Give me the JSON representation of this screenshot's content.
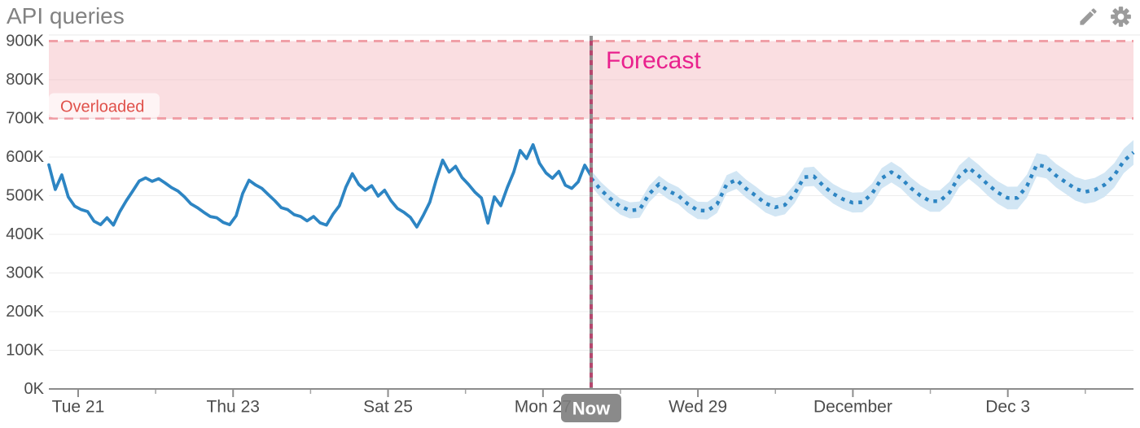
{
  "widget": {
    "title": "API queries",
    "icons": {
      "edit": "pencil-icon",
      "settings": "gear-icon"
    }
  },
  "colors": {
    "title_text": "#828282",
    "icon_gray": "#9b9b9b",
    "line_blue": "#2d85c3",
    "band_blue": "#d2e6f4",
    "zone_fill": "rgba(243,168,176,0.38)",
    "zone_dash": "#f09fa7",
    "overloaded_text": "#e0514b",
    "overloaded_label_bg": "rgba(255,250,250,0.78)",
    "forecast_label": "#e9218d",
    "now_line_pink": "#b5486f",
    "now_line_gray": "#909090",
    "now_badge_bg": "rgba(125,125,125,0.9)",
    "now_badge_text": "#ffffff",
    "axis_line": "#8c8c8c",
    "grid_line": "#ececec",
    "tick_label": "#4d4d4d"
  },
  "chart_data": {
    "type": "line",
    "title": "API queries",
    "values_unit": "thousands of queries (K)",
    "grid": true,
    "y_axis": {
      "min": 0,
      "max": 900,
      "tick_step": 100,
      "tick_values": [
        0,
        100,
        200,
        300,
        400,
        500,
        600,
        700,
        800,
        900
      ],
      "tick_labels": [
        "0K",
        "100K",
        "200K",
        "300K",
        "400K",
        "500K",
        "600K",
        "700K",
        "800K",
        "900K"
      ]
    },
    "x_axis": {
      "domain_days": [
        0,
        14
      ],
      "major_ticks": [
        {
          "label": "Tue 21",
          "day": 0.378
        },
        {
          "label": "Thu 23",
          "day": 2.378
        },
        {
          "label": "Sat 25",
          "day": 4.378
        },
        {
          "label": "Mon 27",
          "day": 6.378
        },
        {
          "label": "Wed 29",
          "day": 8.378
        },
        {
          "label": "December",
          "day": 10.378
        },
        {
          "label": "Dec 3",
          "day": 12.378
        }
      ],
      "minor_tick_days": [
        1.378,
        3.378,
        5.378,
        7.378,
        9.378,
        11.378,
        13.378
      ]
    },
    "annotations": {
      "overloaded_zone": {
        "label": "Overloaded",
        "from_k": 700,
        "to_k": 900
      },
      "now_marker": {
        "label": "Now",
        "day": 7.0
      },
      "forecast_label": {
        "text": "Forecast"
      }
    },
    "series": [
      {
        "name": "API queries (actual)",
        "style": "solid",
        "points_day_valueK": [
          [
            0,
            580
          ],
          [
            0.083,
            516
          ],
          [
            0.167,
            554
          ],
          [
            0.25,
            497
          ],
          [
            0.333,
            473
          ],
          [
            0.417,
            464
          ],
          [
            0.5,
            459
          ],
          [
            0.583,
            434
          ],
          [
            0.667,
            425
          ],
          [
            0.75,
            443
          ],
          [
            0.833,
            424
          ],
          [
            0.917,
            459
          ],
          [
            1,
            487
          ],
          [
            1.083,
            512
          ],
          [
            1.167,
            538
          ],
          [
            1.25,
            546
          ],
          [
            1.333,
            537
          ],
          [
            1.417,
            544
          ],
          [
            1.5,
            533
          ],
          [
            1.583,
            521
          ],
          [
            1.667,
            512
          ],
          [
            1.75,
            497
          ],
          [
            1.833,
            479
          ],
          [
            1.917,
            469
          ],
          [
            2,
            457
          ],
          [
            2.083,
            446
          ],
          [
            2.167,
            443
          ],
          [
            2.25,
            431
          ],
          [
            2.333,
            425
          ],
          [
            2.417,
            448
          ],
          [
            2.5,
            505
          ],
          [
            2.583,
            540
          ],
          [
            2.667,
            528
          ],
          [
            2.75,
            519
          ],
          [
            2.833,
            503
          ],
          [
            2.917,
            487
          ],
          [
            3,
            469
          ],
          [
            3.083,
            464
          ],
          [
            3.167,
            451
          ],
          [
            3.25,
            446
          ],
          [
            3.333,
            435
          ],
          [
            3.417,
            446
          ],
          [
            3.5,
            430
          ],
          [
            3.583,
            424
          ],
          [
            3.667,
            452
          ],
          [
            3.75,
            474
          ],
          [
            3.833,
            522
          ],
          [
            3.917,
            557
          ],
          [
            4,
            529
          ],
          [
            4.083,
            514
          ],
          [
            4.167,
            526
          ],
          [
            4.25,
            499
          ],
          [
            4.333,
            514
          ],
          [
            4.417,
            487
          ],
          [
            4.5,
            467
          ],
          [
            4.583,
            457
          ],
          [
            4.667,
            444
          ],
          [
            4.75,
            419
          ],
          [
            4.833,
            449
          ],
          [
            4.917,
            483
          ],
          [
            5,
            541
          ],
          [
            5.083,
            592
          ],
          [
            5.167,
            561
          ],
          [
            5.25,
            576
          ],
          [
            5.333,
            547
          ],
          [
            5.417,
            529
          ],
          [
            5.5,
            509
          ],
          [
            5.583,
            494
          ],
          [
            5.667,
            429
          ],
          [
            5.75,
            497
          ],
          [
            5.833,
            474
          ],
          [
            5.917,
            521
          ],
          [
            6,
            561
          ],
          [
            6.083,
            617
          ],
          [
            6.167,
            596
          ],
          [
            6.25,
            632
          ],
          [
            6.333,
            584
          ],
          [
            6.417,
            559
          ],
          [
            6.5,
            545
          ],
          [
            6.583,
            563
          ],
          [
            6.667,
            527
          ],
          [
            6.75,
            519
          ],
          [
            6.833,
            536
          ],
          [
            6.917,
            579
          ],
          [
            7,
            551
          ]
        ]
      },
      {
        "name": "API queries (forecast)",
        "style": "dotted",
        "points_day_valueK": [
          [
            7,
            545
          ],
          [
            7.125,
            515
          ],
          [
            7.25,
            492
          ],
          [
            7.375,
            472
          ],
          [
            7.5,
            462
          ],
          [
            7.625,
            464
          ],
          [
            7.75,
            505
          ],
          [
            7.875,
            530
          ],
          [
            8,
            512
          ],
          [
            8.125,
            500
          ],
          [
            8.25,
            478
          ],
          [
            8.375,
            462
          ],
          [
            8.5,
            461
          ],
          [
            8.625,
            478
          ],
          [
            8.75,
            530
          ],
          [
            8.875,
            541
          ],
          [
            9,
            518
          ],
          [
            9.125,
            500
          ],
          [
            9.25,
            480
          ],
          [
            9.375,
            470
          ],
          [
            9.5,
            476
          ],
          [
            9.625,
            505
          ],
          [
            9.75,
            548
          ],
          [
            9.875,
            550
          ],
          [
            10,
            525
          ],
          [
            10.125,
            505
          ],
          [
            10.25,
            491
          ],
          [
            10.375,
            482
          ],
          [
            10.5,
            483
          ],
          [
            10.625,
            505
          ],
          [
            10.75,
            545
          ],
          [
            10.875,
            561
          ],
          [
            11,
            545
          ],
          [
            11.125,
            520
          ],
          [
            11.25,
            500
          ],
          [
            11.375,
            486
          ],
          [
            11.5,
            486
          ],
          [
            11.625,
            508
          ],
          [
            11.75,
            550
          ],
          [
            11.875,
            572
          ],
          [
            12,
            552
          ],
          [
            12.125,
            528
          ],
          [
            12.25,
            508
          ],
          [
            12.375,
            494
          ],
          [
            12.5,
            494
          ],
          [
            12.625,
            525
          ],
          [
            12.75,
            580
          ],
          [
            12.875,
            575
          ],
          [
            13,
            552
          ],
          [
            13.125,
            535
          ],
          [
            13.25,
            518
          ],
          [
            13.375,
            510
          ],
          [
            13.5,
            515
          ],
          [
            13.625,
            528
          ],
          [
            13.75,
            552
          ],
          [
            13.875,
            590
          ],
          [
            14,
            612
          ]
        ],
        "confidence_band": {
          "halfwidth_start_k": 20,
          "halfwidth_end_k": 32
        }
      }
    ]
  }
}
